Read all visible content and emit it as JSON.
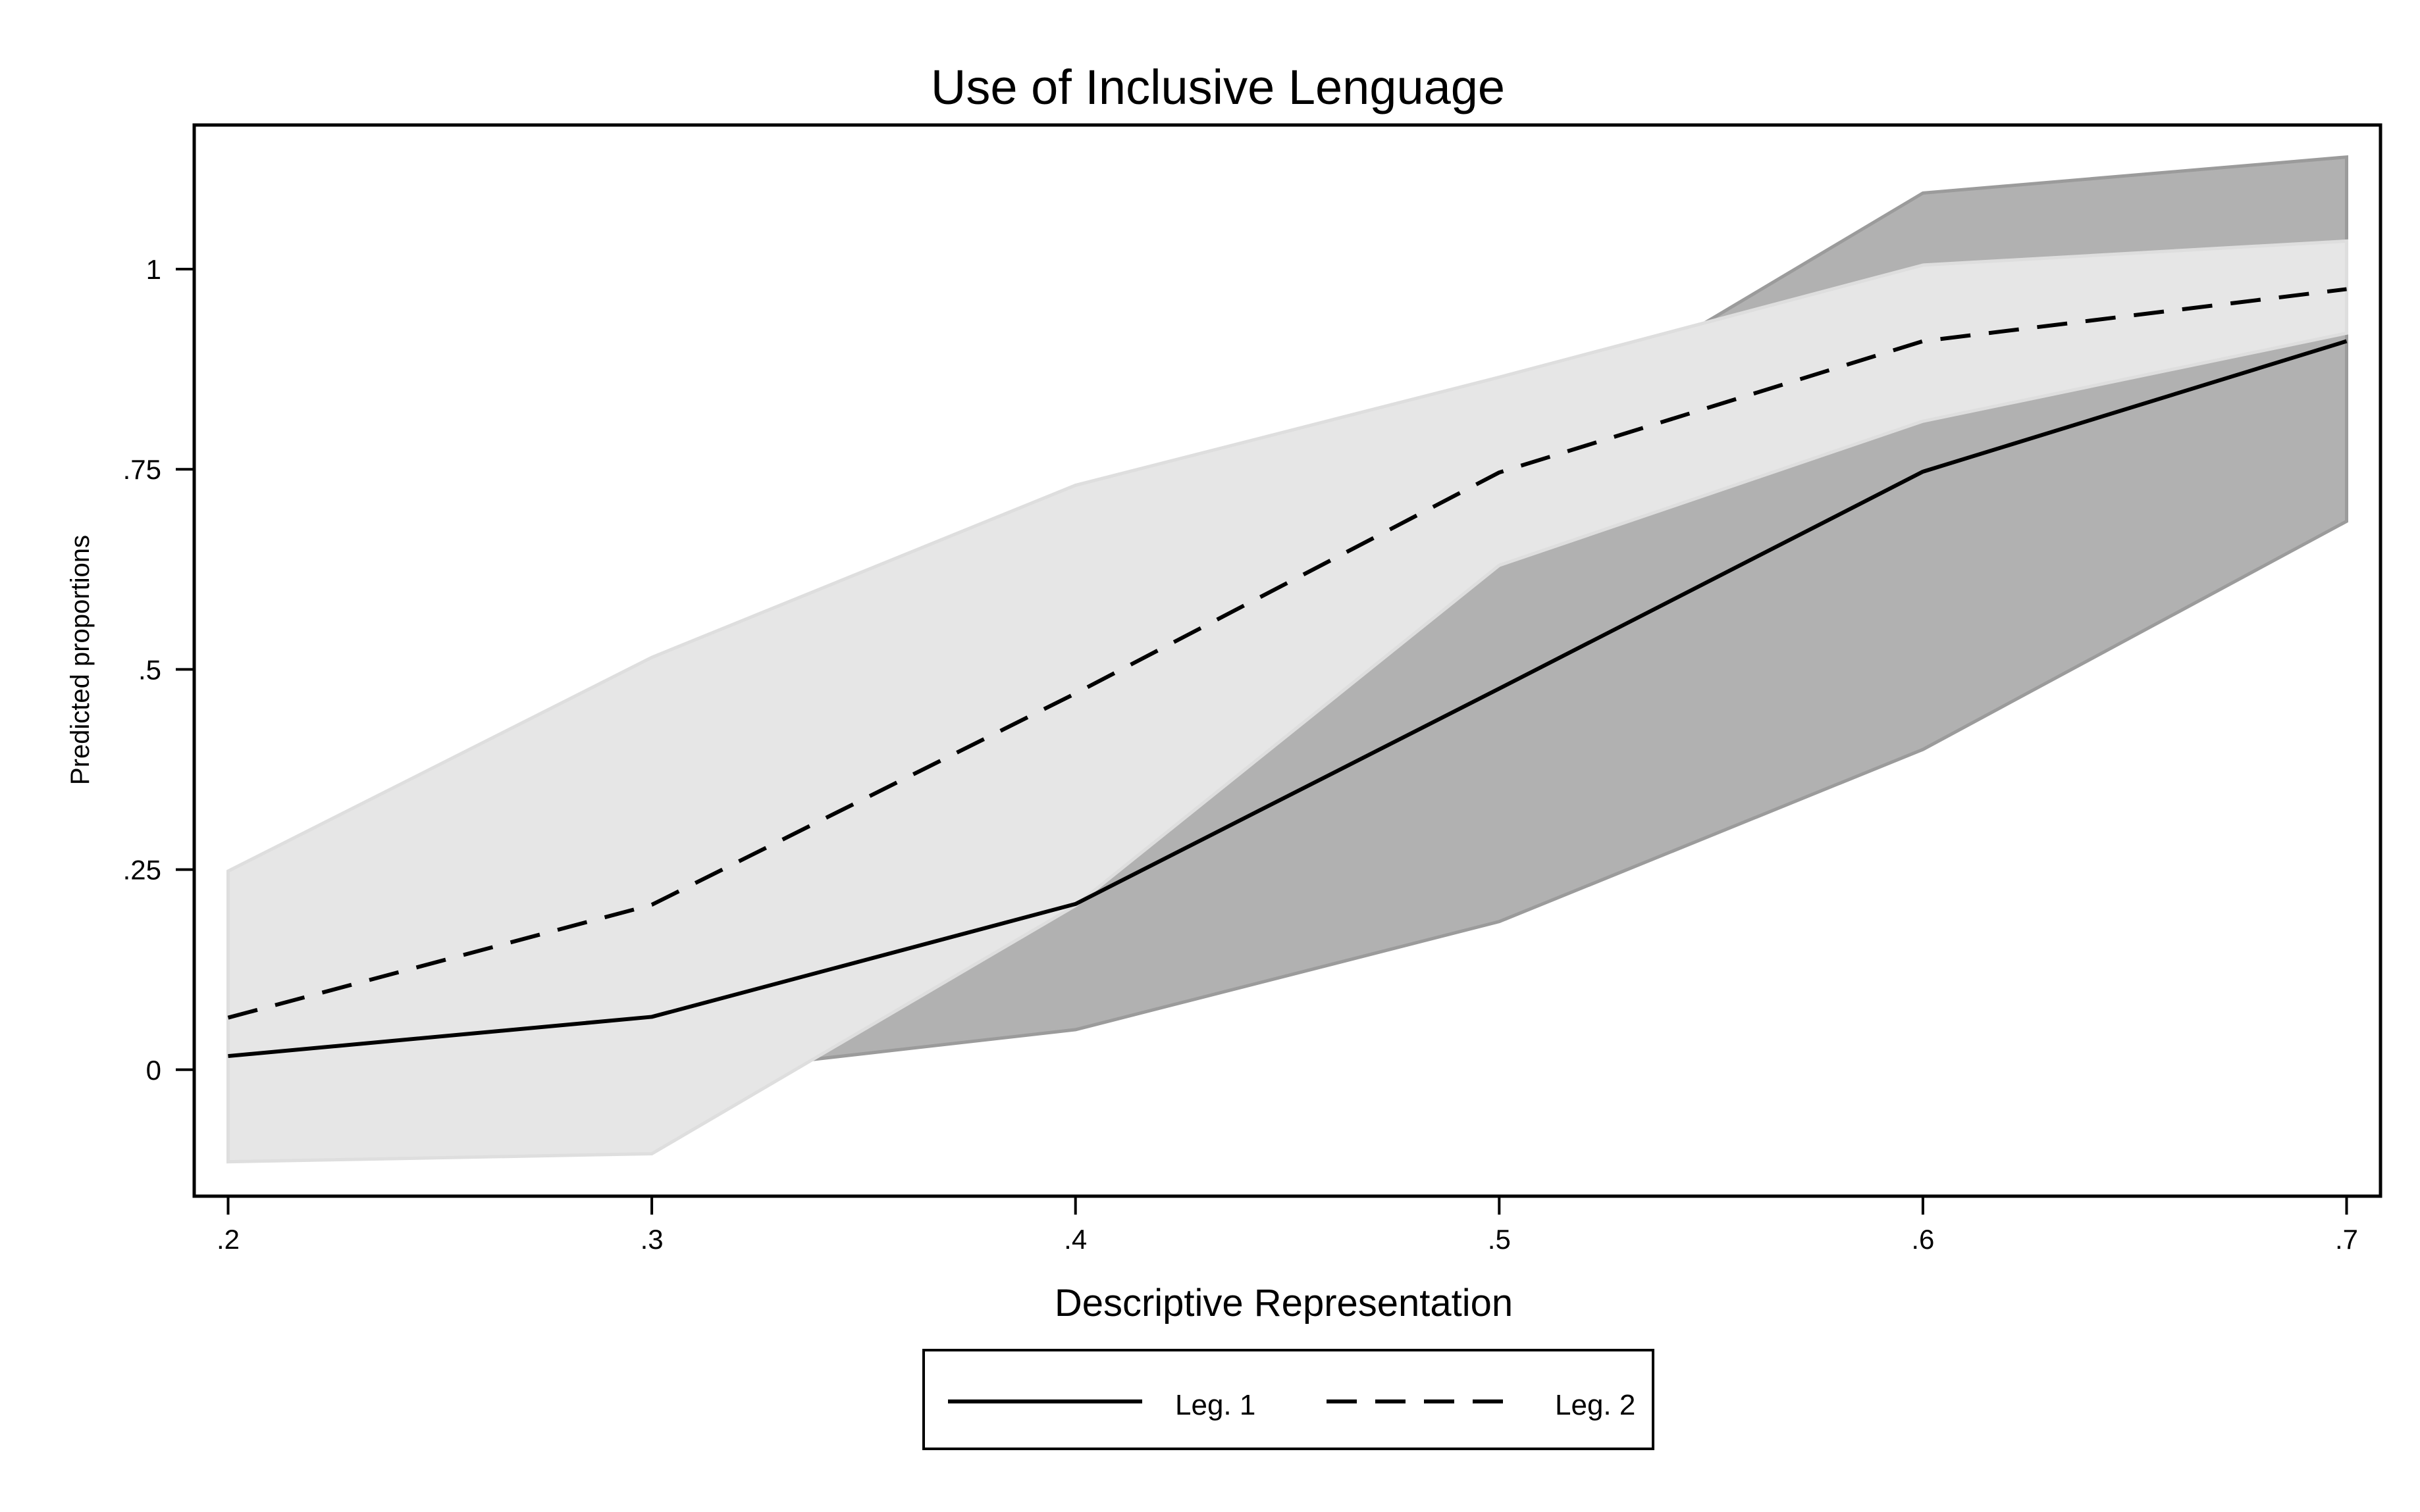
{
  "chart_data": {
    "type": "line",
    "title": "Use of Inclusive Lenguage",
    "xlabel": "Descriptive Representation",
    "ylabel": "Predicted proportions",
    "x": [
      0.2,
      0.3,
      0.4,
      0.5,
      0.6,
      0.7
    ],
    "x_ticks": [
      0.2,
      0.3,
      0.4,
      0.5,
      0.6,
      0.7
    ],
    "x_tick_labels": [
      ".2",
      ".3",
      ".4",
      ".5",
      ".6",
      ".7"
    ],
    "y_ticks": [
      0,
      0.25,
      0.5,
      0.75,
      1
    ],
    "y_tick_labels": [
      "0",
      ".25",
      ".5",
      ".75",
      "1"
    ],
    "xlim": [
      0.192,
      0.708
    ],
    "ylim": [
      -0.158,
      1.18
    ],
    "legend_position": "bottom-center",
    "grid": false,
    "series": [
      {
        "name": "Leg. 1",
        "line_style": "solid",
        "values": [
          0.017,
          0.066,
          0.207,
          0.476,
          0.747,
          0.91
        ],
        "ci_lower": [
          -0.01,
          -0.01,
          0.05,
          0.185,
          0.4,
          0.685
        ],
        "ci_upper": [
          0.04,
          0.14,
          0.37,
          0.78,
          1.095,
          1.14
        ],
        "band_color": "#b1b1b1",
        "band_edge_color": "#9b9b9b"
      },
      {
        "name": "Leg. 2",
        "line_style": "dashed",
        "values": [
          0.065,
          0.206,
          0.47,
          0.746,
          0.91,
          0.975
        ],
        "ci_lower": [
          -0.115,
          -0.105,
          0.205,
          0.63,
          0.81,
          0.92
        ],
        "ci_upper": [
          0.248,
          0.515,
          0.73,
          0.865,
          1.005,
          1.035
        ],
        "band_color": "#e6e6e6",
        "band_edge_color": "#dedede"
      }
    ]
  }
}
